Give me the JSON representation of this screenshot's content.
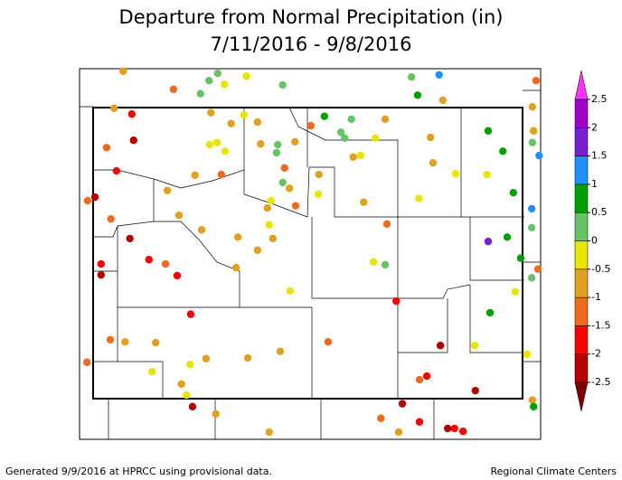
{
  "chart_data": {
    "type": "map",
    "title": "Departure from Normal Precipitation (in)",
    "subtitle": "7/11/2016 - 9/8/2016",
    "footer_left": "Generated 9/9/2016 at HPRCC using provisional data.",
    "footer_right": "Regional Climate Centers",
    "ticks": [
      -2.5,
      -2,
      -1.5,
      -1,
      -0.5,
      0,
      0.5,
      1,
      1.5,
      2,
      2.5
    ],
    "colors": [
      "#800000",
      "#b30000",
      "#ff0000",
      "#f06a1e",
      "#e0a020",
      "#e6e600",
      "#66c466",
      "#00a000",
      "#1e90ff",
      "#7a1fd0",
      "#a000c8",
      "#ff33ff"
    ],
    "points": [
      {
        "lon": -110.56,
        "lat": 45.5,
        "value": -0.75
      },
      {
        "lon": -109.02,
        "lat": 45.47,
        "value": 0.25
      },
      {
        "lon": -108.55,
        "lat": 45.43,
        "value": -0.25
      },
      {
        "lon": -109.16,
        "lat": 45.37,
        "value": 0.25
      },
      {
        "lon": -108.91,
        "lat": 45.32,
        "value": -0.25
      },
      {
        "lon": -109.74,
        "lat": 45.25,
        "value": -1.25
      },
      {
        "lon": -109.3,
        "lat": 45.19,
        "value": 0.25
      },
      {
        "lon": -107.96,
        "lat": 45.31,
        "value": 0.25
      },
      {
        "lon": -105.86,
        "lat": 45.42,
        "value": 0.25
      },
      {
        "lon": -105.41,
        "lat": 45.45,
        "value": 1.25
      },
      {
        "lon": -105.76,
        "lat": 45.17,
        "value": 0.75
      },
      {
        "lon": -105.35,
        "lat": 45.1,
        "value": -0.75
      },
      {
        "lon": -103.83,
        "lat": 45.37,
        "value": -1.25
      },
      {
        "lon": -110.71,
        "lat": 44.99,
        "value": -0.75
      },
      {
        "lon": -110.42,
        "lat": 44.91,
        "value": -1.75
      },
      {
        "lon": -109.13,
        "lat": 44.93,
        "value": -0.75
      },
      {
        "lon": -108.59,
        "lat": 44.9,
        "value": -0.25
      },
      {
        "lon": -108.8,
        "lat": 44.78,
        "value": -0.75
      },
      {
        "lon": -107.28,
        "lat": 44.88,
        "value": 0.75
      },
      {
        "lon": -106.84,
        "lat": 44.84,
        "value": 0.25
      },
      {
        "lon": -107.5,
        "lat": 44.75,
        "value": -1.25
      },
      {
        "lon": -106.29,
        "lat": 44.84,
        "value": -0.75
      },
      {
        "lon": -107.01,
        "lat": 44.66,
        "value": 0.25
      },
      {
        "lon": -104.61,
        "lat": 44.68,
        "value": 0.75
      },
      {
        "lon": -103.89,
        "lat": 45.01,
        "value": -0.75
      },
      {
        "lon": -103.87,
        "lat": 44.68,
        "value": -0.75
      },
      {
        "lon": -103.89,
        "lat": 44.52,
        "value": 0.25
      },
      {
        "lon": -103.78,
        "lat": 44.34,
        "value": 1.25
      },
      {
        "lon": -110.39,
        "lat": 44.55,
        "value": -2.25
      },
      {
        "lon": -110.83,
        "lat": 44.45,
        "value": -1.25
      },
      {
        "lon": -109.03,
        "lat": 44.52,
        "value": -0.25
      },
      {
        "lon": -109.15,
        "lat": 44.49,
        "value": -0.25
      },
      {
        "lon": -108.9,
        "lat": 44.4,
        "value": -0.25
      },
      {
        "lon": -108.37,
        "lat": 44.8,
        "value": -0.75
      },
      {
        "lon": -108.32,
        "lat": 44.5,
        "value": -0.75
      },
      {
        "lon": -108.04,
        "lat": 44.49,
        "value": 0.25
      },
      {
        "lon": -107.76,
        "lat": 44.53,
        "value": -0.75
      },
      {
        "lon": -108.06,
        "lat": 44.38,
        "value": 0.25
      },
      {
        "lon": -106.95,
        "lat": 44.58,
        "value": 0.25
      },
      {
        "lon": -106.45,
        "lat": 44.58,
        "value": -0.25
      },
      {
        "lon": -106.81,
        "lat": 44.32,
        "value": -0.75
      },
      {
        "lon": -106.69,
        "lat": 44.34,
        "value": -0.25
      },
      {
        "lon": -105.55,
        "lat": 44.59,
        "value": -0.75
      },
      {
        "lon": -104.37,
        "lat": 44.4,
        "value": 0.75
      },
      {
        "lon": -105.51,
        "lat": 44.24,
        "value": -0.75
      },
      {
        "lon": -110.67,
        "lat": 44.13,
        "value": -1.75
      },
      {
        "lon": -107.93,
        "lat": 44.17,
        "value": -1.25
      },
      {
        "lon": -107.37,
        "lat": 44.08,
        "value": -0.75
      },
      {
        "lon": -108.96,
        "lat": 44.08,
        "value": -1.25
      },
      {
        "lon": -109.39,
        "lat": 44.07,
        "value": -0.75
      },
      {
        "lon": -107.96,
        "lat": 43.97,
        "value": 0.25
      },
      {
        "lon": -105.14,
        "lat": 44.09,
        "value": -0.25
      },
      {
        "lon": -104.63,
        "lat": 44.08,
        "value": -0.25
      },
      {
        "lon": -104.2,
        "lat": 43.83,
        "value": 0.75
      },
      {
        "lon": -111.02,
        "lat": 43.77,
        "value": -2.25
      },
      {
        "lon": -111.14,
        "lat": 43.72,
        "value": -1.25
      },
      {
        "lon": -109.84,
        "lat": 43.86,
        "value": -0.75
      },
      {
        "lon": -107.85,
        "lat": 43.89,
        "value": -0.75
      },
      {
        "lon": -107.38,
        "lat": 43.81,
        "value": -0.25
      },
      {
        "lon": -108.15,
        "lat": 43.72,
        "value": -0.25
      },
      {
        "lon": -108.21,
        "lat": 43.62,
        "value": -0.75
      },
      {
        "lon": -107.75,
        "lat": 43.65,
        "value": -1.25
      },
      {
        "lon": -105.74,
        "lat": 43.75,
        "value": -0.25
      },
      {
        "lon": -106.64,
        "lat": 43.7,
        "value": -0.75
      },
      {
        "lon": -103.9,
        "lat": 43.61,
        "value": 1.25
      },
      {
        "lon": -110.76,
        "lat": 43.47,
        "value": -1.25
      },
      {
        "lon": -109.65,
        "lat": 43.52,
        "value": -0.75
      },
      {
        "lon": -108.18,
        "lat": 43.39,
        "value": -0.25
      },
      {
        "lon": -106.26,
        "lat": 43.4,
        "value": -1.25
      },
      {
        "lon": -103.9,
        "lat": 43.35,
        "value": 0.25
      },
      {
        "lon": -109.28,
        "lat": 43.32,
        "value": -0.75
      },
      {
        "lon": -110.45,
        "lat": 43.2,
        "value": -2.25
      },
      {
        "lon": -108.69,
        "lat": 43.22,
        "value": -0.75
      },
      {
        "lon": -108.12,
        "lat": 43.2,
        "value": -0.75
      },
      {
        "lon": -104.61,
        "lat": 43.16,
        "value": 1.75
      },
      {
        "lon": -104.3,
        "lat": 43.22,
        "value": 0.75
      },
      {
        "lon": -108.37,
        "lat": 43.04,
        "value": -0.75
      },
      {
        "lon": -110.14,
        "lat": 42.91,
        "value": -1.75
      },
      {
        "lon": -109.87,
        "lat": 42.85,
        "value": -1.25
      },
      {
        "lon": -109.68,
        "lat": 42.69,
        "value": -1.75
      },
      {
        "lon": -110.92,
        "lat": 42.85,
        "value": -1.75
      },
      {
        "lon": -110.92,
        "lat": 42.7,
        "value": -2.25
      },
      {
        "lon": -108.72,
        "lat": 42.8,
        "value": -0.75
      },
      {
        "lon": -106.48,
        "lat": 42.88,
        "value": -0.25
      },
      {
        "lon": -106.29,
        "lat": 42.84,
        "value": 0.25
      },
      {
        "lon": -104.08,
        "lat": 42.93,
        "value": 0.75
      },
      {
        "lon": -103.8,
        "lat": 42.78,
        "value": -1.25
      },
      {
        "lon": -103.9,
        "lat": 42.66,
        "value": 0.25
      },
      {
        "lon": -107.84,
        "lat": 42.48,
        "value": -0.25
      },
      {
        "lon": -106.11,
        "lat": 42.34,
        "value": -1.75
      },
      {
        "lon": -104.17,
        "lat": 42.47,
        "value": -0.25
      },
      {
        "lon": -104.58,
        "lat": 42.18,
        "value": 0.75
      },
      {
        "lon": -109.46,
        "lat": 42.16,
        "value": -1.75
      },
      {
        "lon": -110.77,
        "lat": 41.81,
        "value": -1.25
      },
      {
        "lon": -110.53,
        "lat": 41.78,
        "value": -0.75
      },
      {
        "lon": -110.03,
        "lat": 41.77,
        "value": -0.75
      },
      {
        "lon": -107.22,
        "lat": 41.78,
        "value": -1.25
      },
      {
        "lon": -108.0,
        "lat": 41.65,
        "value": -0.75
      },
      {
        "lon": -108.53,
        "lat": 41.56,
        "value": -0.75
      },
      {
        "lon": -109.21,
        "lat": 41.55,
        "value": -0.75
      },
      {
        "lon": -109.47,
        "lat": 41.47,
        "value": -0.25
      },
      {
        "lon": -111.15,
        "lat": 41.5,
        "value": -1.25
      },
      {
        "lon": -105.39,
        "lat": 41.73,
        "value": -2.25
      },
      {
        "lon": -104.83,
        "lat": 41.73,
        "value": -0.25
      },
      {
        "lon": -103.98,
        "lat": 41.61,
        "value": -0.25
      },
      {
        "lon": -110.09,
        "lat": 41.37,
        "value": -0.25
      },
      {
        "lon": -105.61,
        "lat": 41.31,
        "value": -1.75
      },
      {
        "lon": -105.73,
        "lat": 41.26,
        "value": -1.25
      },
      {
        "lon": -109.61,
        "lat": 41.2,
        "value": -0.75
      },
      {
        "lon": -109.53,
        "lat": 41.05,
        "value": -0.25
      },
      {
        "lon": -104.82,
        "lat": 41.11,
        "value": -2.25
      },
      {
        "lon": -103.89,
        "lat": 40.98,
        "value": -0.75
      },
      {
        "lon": -106.01,
        "lat": 40.93,
        "value": -2.25
      },
      {
        "lon": -103.87,
        "lat": 40.89,
        "value": 0.75
      },
      {
        "lon": -109.43,
        "lat": 40.89,
        "value": -2.25
      },
      {
        "lon": -109.05,
        "lat": 40.79,
        "value": -0.75
      },
      {
        "lon": -106.36,
        "lat": 40.73,
        "value": -1.25
      },
      {
        "lon": -105.73,
        "lat": 40.68,
        "value": -1.75
      },
      {
        "lon": -105.27,
        "lat": 40.59,
        "value": -2.25
      },
      {
        "lon": -105.16,
        "lat": 40.59,
        "value": -1.75
      },
      {
        "lon": -105.02,
        "lat": 40.55,
        "value": -1.75
      },
      {
        "lon": -108.18,
        "lat": 40.54,
        "value": -0.75
      },
      {
        "lon": -106.07,
        "lat": 40.54,
        "value": -0.75
      }
    ]
  }
}
